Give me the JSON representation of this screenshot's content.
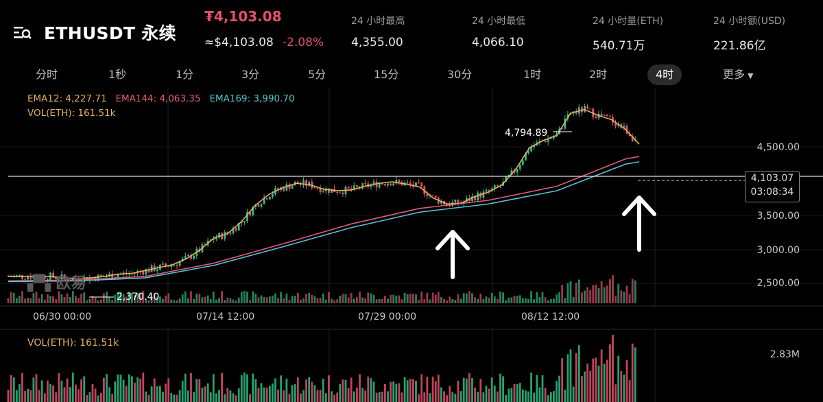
{
  "header": {
    "symbol": "ETHUSDT 永续",
    "last_price": "₮4,103.08",
    "usd_price": "≈$4,103.08",
    "change": "-2.08%",
    "stats": [
      {
        "label": "24 小时最高",
        "value": "4,355.00"
      },
      {
        "label": "24 小时最低",
        "value": "4,066.10"
      },
      {
        "label": "24 小时量(ETH)",
        "value": "540.71万"
      },
      {
        "label": "24 小时额(USD)",
        "value": "221.86亿"
      }
    ]
  },
  "tabs": [
    "分时",
    "1秒",
    "1分",
    "3分",
    "5分",
    "15分",
    "30分",
    "1时",
    "2时",
    "4时",
    "更多"
  ],
  "active_tab": "4时",
  "indicators": {
    "ema12": "EMA12: 4,227.71",
    "ema144": "EMA144: 4,063.35",
    "ema169": "EMA169: 3,990.70",
    "vol": "VOL(ETH): 161.51k"
  },
  "watermark": "欧易",
  "price_tag": {
    "price": "4,103.07",
    "countdown": "03:08:34"
  },
  "annotations": {
    "high": "4,794.89",
    "low": "2,370.40"
  },
  "volume_panel": {
    "label": "VOL(ETH): 161.51k",
    "scale": "2.83M"
  },
  "colors": {
    "up": "#2ebd85",
    "down": "#e5506b",
    "ema12": "#e8b25c",
    "ema144": "#e45a79",
    "ema169": "#58c2d6"
  },
  "chart_data": {
    "type": "line",
    "title": "",
    "xlabel": "",
    "ylabel": "",
    "x_ticks": [
      "06/30 00:00",
      "07/14 12:00",
      "07/29 00:00",
      "08/12 12:00"
    ],
    "y_ticks": [
      "4,500.00",
      "3,500.00",
      "3,000.00",
      "2,500.00"
    ],
    "ylim": [
      2300,
      4900
    ],
    "series": [
      {
        "name": "EMA12",
        "x": [
          0,
          20,
          40,
          60,
          80,
          100,
          120,
          140,
          160,
          180,
          200,
          220,
          240,
          260,
          280,
          300,
          320,
          340,
          360,
          380,
          400,
          420,
          440,
          460,
          480,
          500,
          520,
          540,
          560,
          580,
          600,
          620,
          640,
          660,
          680,
          700,
          720,
          740,
          760,
          780,
          800,
          820,
          840,
          860,
          880,
          900,
          920
        ],
        "values": [
          2440,
          2440,
          2445,
          2440,
          2420,
          2410,
          2420,
          2440,
          2470,
          2480,
          2520,
          2560,
          2600,
          2680,
          2800,
          2960,
          3020,
          3180,
          3400,
          3550,
          3640,
          3700,
          3680,
          3620,
          3600,
          3610,
          3660,
          3700,
          3720,
          3690,
          3650,
          3500,
          3420,
          3430,
          3520,
          3580,
          3680,
          3890,
          4180,
          4280,
          4350,
          4650,
          4700,
          4620,
          4560,
          4430,
          4230
        ]
      },
      {
        "name": "EMA144",
        "x": [
          0,
          100,
          200,
          300,
          400,
          500,
          600,
          700,
          800,
          900,
          920
        ],
        "values": [
          2380,
          2390,
          2440,
          2620,
          2880,
          3150,
          3360,
          3470,
          3660,
          4030,
          4063
        ]
      },
      {
        "name": "EMA169",
        "x": [
          0,
          100,
          200,
          300,
          400,
          500,
          600,
          700,
          800,
          900,
          920
        ],
        "values": [
          2370,
          2380,
          2420,
          2590,
          2840,
          3100,
          3310,
          3420,
          3600,
          3960,
          3991
        ]
      }
    ]
  }
}
